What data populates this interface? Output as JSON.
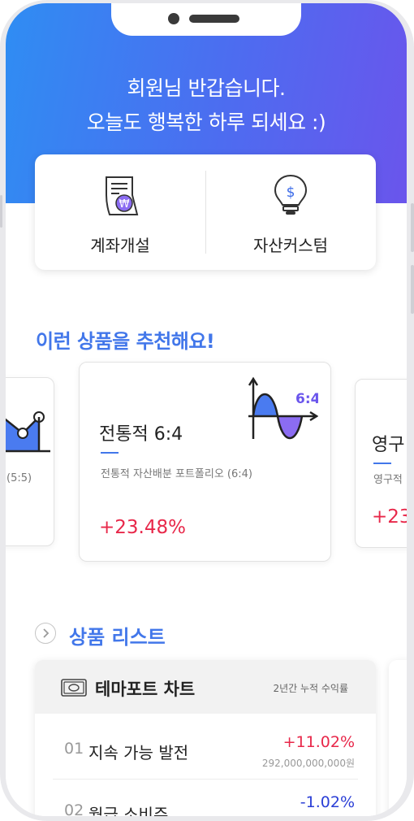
{
  "greeting": {
    "line1": "회원님 반갑습니다.",
    "line2": "오늘도 행복한 하루 되세요 :)"
  },
  "quick_menu": [
    {
      "label": "계좌개설",
      "icon": "account-open-icon"
    },
    {
      "label": "자산커스텀",
      "icon": "lightbulb-dollar-icon"
    }
  ],
  "recommend": {
    "title": "이런 상품을 추천해요!",
    "cards": [
      {
        "name": "",
        "desc": "(5:5)",
        "return": "",
        "icon": "line-chart-icon"
      },
      {
        "name": "전통적 6:4",
        "desc": "전통적 자산배분 포트폴리오 (6:4)",
        "return": "+23.48%",
        "icon": "wave-chart-icon",
        "chart_label": "6:4"
      },
      {
        "name": "영구",
        "desc": "영구적",
        "return": "+23",
        "icon": ""
      }
    ]
  },
  "product_list": {
    "title": "상품 리스트",
    "panel": {
      "title": "테마포트 차트",
      "subtitle": "2년간 누적 수익률",
      "icon": "banknote-icon",
      "rows": [
        {
          "rank": "01",
          "name": "지속 가능 발전",
          "return": "+11.02%",
          "amount": "292,000,000,000원",
          "color": "#e8284a"
        },
        {
          "rank": "02",
          "name": "월급 소비주",
          "return": "-1.02%",
          "amount": "",
          "color": "#2b3fd6"
        }
      ]
    }
  },
  "colors": {
    "accent": "#4277ea",
    "positive": "#e8284a",
    "negative": "#2b3fd6",
    "hero_start": "#2f8df3",
    "hero_end": "#6a55ec"
  }
}
